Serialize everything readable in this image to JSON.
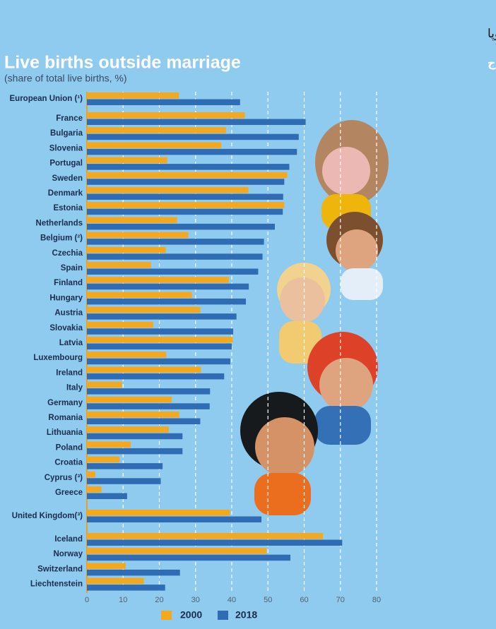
{
  "header": {
    "title_fa": "اینفوگرافیک سایت رسمی مرکز آمار اتحادیه‌ی اروپا",
    "subtitle_fa": "تولدهای زنده‌ی خارج از ازدواج"
  },
  "chart_data": {
    "type": "hbar",
    "title": "Live births outside marriage",
    "subtitle": "(share of total live births, %)",
    "categories": [
      "European Union (¹)",
      "France",
      "Bulgaria",
      "Slovenia",
      "Portugal",
      "Sweden",
      "Denmark",
      "Estonia",
      "Netherlands",
      "Belgium (²)",
      "Czechia",
      "Spain",
      "Finland",
      "Hungary",
      "Austria",
      "Slovakia",
      "Latvia",
      "Luxembourg",
      "Ireland",
      "Italy",
      "Germany",
      "Romania",
      "Lithuania",
      "Poland",
      "Croatia",
      "Cyprus (³)",
      "Greece",
      "United Kingdom(³)",
      "Iceland",
      "Norway",
      "Switzerland",
      "Liechtenstein"
    ],
    "series": [
      {
        "name": "2000",
        "color": "#f5a81c",
        "values": [
          25.4,
          43.6,
          38.4,
          37.1,
          22.2,
          55.3,
          44.6,
          54.5,
          24.9,
          28.0,
          21.8,
          17.7,
          39.2,
          29.0,
          31.3,
          18.3,
          40.3,
          21.9,
          31.5,
          9.7,
          23.4,
          25.5,
          22.6,
          12.1,
          9.0,
          2.3,
          4.0,
          39.5,
          65.2,
          49.6,
          10.7,
          15.7
        ]
      },
      {
        "name": "2018",
        "color": "#2f6cb3",
        "values": [
          42.3,
          60.4,
          58.5,
          58.0,
          55.9,
          54.5,
          54.2,
          54.1,
          51.9,
          48.9,
          48.5,
          47.3,
          44.7,
          43.9,
          41.3,
          40.4,
          40.0,
          39.6,
          37.9,
          34.0,
          33.9,
          31.3,
          26.4,
          26.4,
          20.9,
          20.4,
          11.1,
          48.2,
          70.5,
          56.2,
          25.7,
          21.6
        ]
      }
    ],
    "xlim": [
      0,
      80
    ],
    "xticks": [
      0,
      10,
      20,
      30,
      40,
      50,
      60,
      70,
      80
    ],
    "grid": true
  }
}
